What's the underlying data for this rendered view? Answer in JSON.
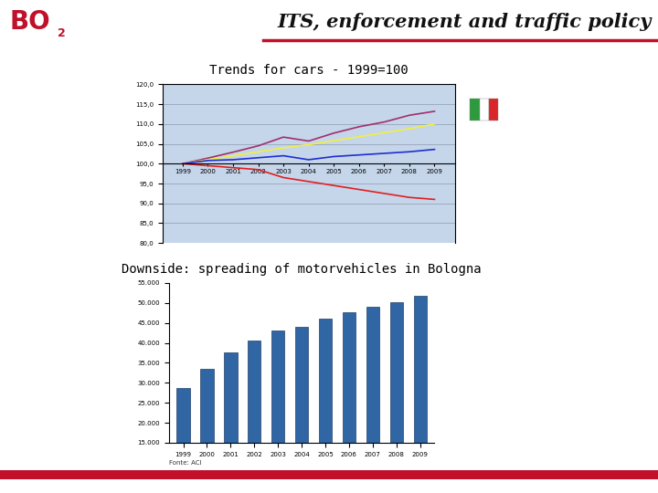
{
  "header": {
    "title": "ITS, enforcement and traffic policy",
    "logo": "BO",
    "logo_sub": "2"
  },
  "chart_data": [
    {
      "type": "line",
      "title": "Trends for cars - 1999=100",
      "categories": [
        "1999",
        "2000",
        "2001",
        "2002",
        "2003",
        "2004",
        "2005",
        "2006",
        "2007",
        "2008",
        "2009"
      ],
      "series": [
        {
          "color": "#a0306a",
          "values": [
            100,
            101.4,
            102.9,
            104.5,
            106.7,
            105.7,
            107.7,
            109.3,
            110.5,
            112.2,
            113.2
          ]
        },
        {
          "color": "#f0f040",
          "values": [
            100,
            101,
            102,
            103,
            104,
            104.8,
            105.8,
            106.8,
            107.8,
            108.8,
            110
          ]
        },
        {
          "color": "#1f2fd0",
          "values": [
            100,
            100.8,
            101,
            101.5,
            102,
            101,
            101.8,
            102.2,
            102.6,
            103,
            103.6
          ]
        },
        {
          "color": "#e02020",
          "values": [
            100,
            99.5,
            99,
            98.5,
            96.5,
            95.5,
            94.5,
            93.5,
            92.5,
            91.5,
            91
          ]
        }
      ],
      "ylim": [
        80,
        120
      ],
      "yticks": [
        {
          "value": 80,
          "label": "80,0"
        },
        {
          "value": 85,
          "label": "85,0"
        },
        {
          "value": 90,
          "label": "90,0"
        },
        {
          "value": 95,
          "label": "95,0"
        },
        {
          "value": 100,
          "label": "100,0"
        },
        {
          "value": 105,
          "label": "105,0"
        },
        {
          "value": 110,
          "label": "110,0"
        },
        {
          "value": 115,
          "label": "115,0"
        },
        {
          "value": 120,
          "label": "120,0"
        }
      ],
      "grid": true
    },
    {
      "type": "bar",
      "title": "Downside: spreading of motorvehicles in Bologna",
      "categories": [
        "1999",
        "2000",
        "2001",
        "2002",
        "2003",
        "2004",
        "2005",
        "2006",
        "2007",
        "2008",
        "2009"
      ],
      "values": [
        28800,
        33600,
        37600,
        40700,
        43100,
        44000,
        46000,
        47600,
        49000,
        50200,
        51700
      ],
      "color": "#2f66a3",
      "ylim": [
        15000,
        55000
      ],
      "yticks": [
        {
          "value": 15000,
          "label": "15.000"
        },
        {
          "value": 20000,
          "label": "20.000"
        },
        {
          "value": 25000,
          "label": "25.000"
        },
        {
          "value": 30000,
          "label": "30.000"
        },
        {
          "value": 35000,
          "label": "35.000"
        },
        {
          "value": 40000,
          "label": "40.000"
        },
        {
          "value": 45000,
          "label": "45.000"
        },
        {
          "value": 50000,
          "label": "50.000"
        },
        {
          "value": 55000,
          "label": "55.000"
        }
      ],
      "grid": false,
      "source": "Fonte: ACI"
    }
  ]
}
